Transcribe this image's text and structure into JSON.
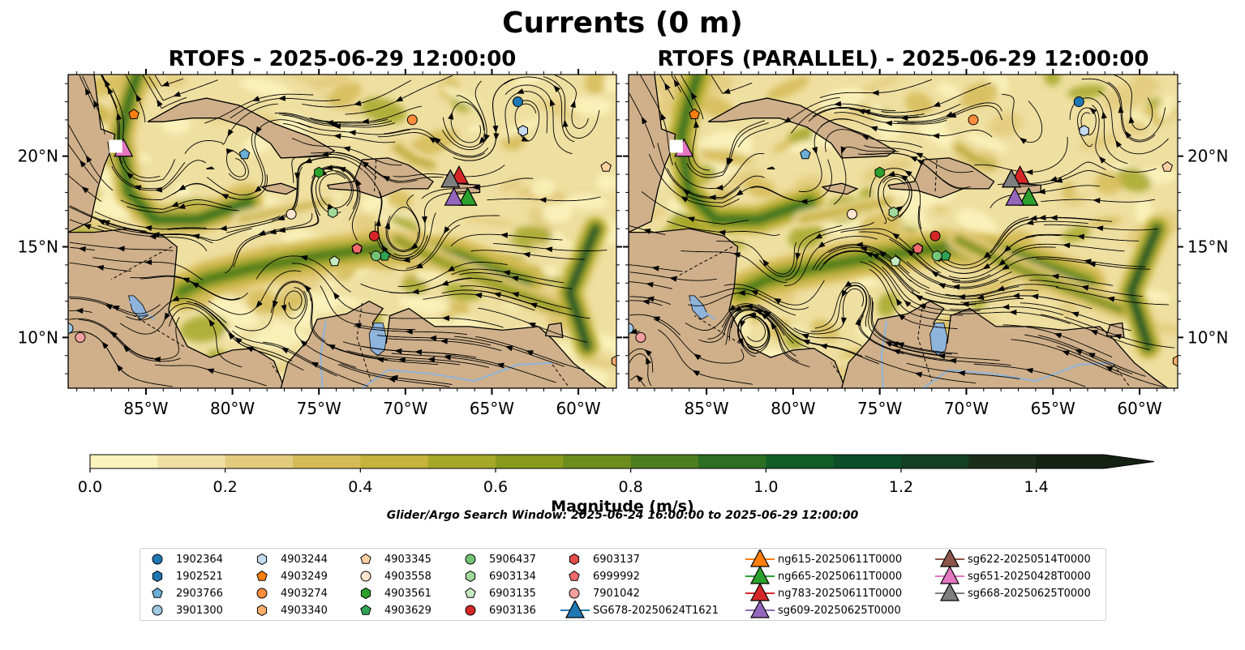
{
  "figure": {
    "title": "Currents (0 m)",
    "panels": [
      {
        "title": "RTOFS - 2025-06-29 12:00:00"
      },
      {
        "title": "RTOFS (PARALLEL) - 2025-06-29 12:00:00"
      }
    ],
    "lon_ticks": [
      "85°W",
      "80°W",
      "75°W",
      "70°W",
      "65°W",
      "60°W"
    ],
    "lat_ticks": [
      "20°N",
      "15°N",
      "10°N"
    ],
    "lon_range": [
      -89.5,
      -57.8
    ],
    "lat_range": [
      7.2,
      24.5
    ],
    "colorbar": {
      "label": "Magnitude (m/s)",
      "ticks": [
        "0.0",
        "0.2",
        "0.4",
        "0.6",
        "0.8",
        "1.0",
        "1.2",
        "1.4"
      ],
      "range": [
        0,
        1.5
      ],
      "extend": "max"
    },
    "search_window": "Glider/Argo Search Window: 2025-06-24 16:00:00 to 2025-06-29 12:00:00"
  },
  "colors": {
    "land": "#cfb08a",
    "water_bodies": "#8fb4dc",
    "cmap": [
      "#fbf3bd",
      "#efdfa0",
      "#e3cb7e",
      "#d5bb57",
      "#c4b33c",
      "#a6a729",
      "#889a1c",
      "#6c8c1e",
      "#4d7d1f",
      "#2c6e22",
      "#115f26",
      "#0b4d27",
      "#133f22",
      "#1a2e1a",
      "#142214"
    ]
  },
  "legend": [
    {
      "label": "1902364",
      "color": "#1f77b4",
      "marker": "circle"
    },
    {
      "label": "1902521",
      "color": "#1f77b4",
      "marker": "hexagon"
    },
    {
      "label": "2903766",
      "color": "#6baed6",
      "marker": "pentagon"
    },
    {
      "label": "3901300",
      "color": "#9ecae1",
      "marker": "circle"
    },
    {
      "label": "4903244",
      "color": "#c6dbef",
      "marker": "hexagon"
    },
    {
      "label": "4903249",
      "color": "#ff7f0e",
      "marker": "pentagon"
    },
    {
      "label": "4903274",
      "color": "#fd8d3c",
      "marker": "circle"
    },
    {
      "label": "4903340",
      "color": "#fdae6b",
      "marker": "hexagon"
    },
    {
      "label": "4903345",
      "color": "#fdd0a2",
      "marker": "pentagon"
    },
    {
      "label": "4903558",
      "color": "#fee6ce",
      "marker": "circle"
    },
    {
      "label": "4903561",
      "color": "#2ca02c",
      "marker": "hexagon"
    },
    {
      "label": "4903629",
      "color": "#31a354",
      "marker": "pentagon"
    },
    {
      "label": "5906437",
      "color": "#74c476",
      "marker": "circle"
    },
    {
      "label": "6903134",
      "color": "#a1d99b",
      "marker": "hexagon"
    },
    {
      "label": "6903135",
      "color": "#c7e9c0",
      "marker": "pentagon"
    },
    {
      "label": "6903136",
      "color": "#d62728",
      "marker": "circle"
    },
    {
      "label": "6903137",
      "color": "#e34a4a",
      "marker": "hexagon"
    },
    {
      "label": "6999992",
      "color": "#ef6b6b",
      "marker": "pentagon"
    },
    {
      "label": "7901042",
      "color": "#f4a0a0",
      "marker": "circle"
    },
    {
      "label": "SG678-20250624T1621",
      "color": "#1f77b4",
      "marker": "triangle"
    },
    {
      "label": "ng615-20250611T0000",
      "color": "#ff7f0e",
      "marker": "triangle"
    },
    {
      "label": "ng665-20250611T0000",
      "color": "#2ca02c",
      "marker": "triangle"
    },
    {
      "label": "ng783-20250611T0000",
      "color": "#d62728",
      "marker": "triangle"
    },
    {
      "label": "sg609-20250625T0000",
      "color": "#9467bd",
      "marker": "triangle"
    },
    {
      "label": "sg622-20250514T0000",
      "color": "#8c564b",
      "marker": "triangle"
    },
    {
      "label": "sg651-20250428T0000",
      "color": "#e377c2",
      "marker": "triangle"
    },
    {
      "label": "sg668-20250625T0000",
      "color": "#7f7f7f",
      "marker": "triangle"
    }
  ],
  "markers": [
    {
      "id": "1902364",
      "lon": -63.5,
      "lat": 23.0
    },
    {
      "id": "1902521",
      "lon": -63.2,
      "lat": 21.4
    },
    {
      "id": "2903766",
      "lon": -79.3,
      "lat": 20.1
    },
    {
      "id": "3901300",
      "lon": -89.5,
      "lat": 10.5
    },
    {
      "id": "4903244",
      "lon": -63.2,
      "lat": 21.4
    },
    {
      "id": "4903249",
      "lon": -85.7,
      "lat": 22.3
    },
    {
      "id": "4903274",
      "lon": -69.6,
      "lat": 22.0
    },
    {
      "id": "4903340",
      "lon": -57.8,
      "lat": 8.7
    },
    {
      "id": "4903345",
      "lon": -58.4,
      "lat": 19.4
    },
    {
      "id": "4903558",
      "lon": -76.6,
      "lat": 16.8
    },
    {
      "id": "4903561",
      "lon": -75.0,
      "lat": 19.1
    },
    {
      "id": "4903629",
      "lon": -71.2,
      "lat": 14.5
    },
    {
      "id": "5906437",
      "lon": -71.7,
      "lat": 14.5
    },
    {
      "id": "6903134",
      "lon": -74.2,
      "lat": 16.9
    },
    {
      "id": "6903135",
      "lon": -74.1,
      "lat": 14.2
    },
    {
      "id": "6903136",
      "lon": -71.8,
      "lat": 15.6
    },
    {
      "id": "6903137",
      "lon": -72.8,
      "lat": 14.9
    },
    {
      "id": "6999992",
      "lon": -72.8,
      "lat": 14.9
    },
    {
      "id": "7901042",
      "lon": -88.8,
      "lat": 10.0
    },
    {
      "id": "ng615-20250611T0000",
      "lon": -66.4,
      "lat": 17.7
    },
    {
      "id": "ng665-20250611T0000",
      "lon": -66.4,
      "lat": 17.7
    },
    {
      "id": "ng783-20250611T0000",
      "lon": -66.9,
      "lat": 18.9
    },
    {
      "id": "sg609-20250625T0000",
      "lon": -67.2,
      "lat": 17.7
    },
    {
      "id": "sg622-20250514T0000",
      "lon": -67.4,
      "lat": 18.7
    },
    {
      "id": "sg651-20250428T0000",
      "lon": -86.3,
      "lat": 20.4
    },
    {
      "id": "sg668-20250625T0000",
      "lon": -67.4,
      "lat": 18.7
    }
  ]
}
